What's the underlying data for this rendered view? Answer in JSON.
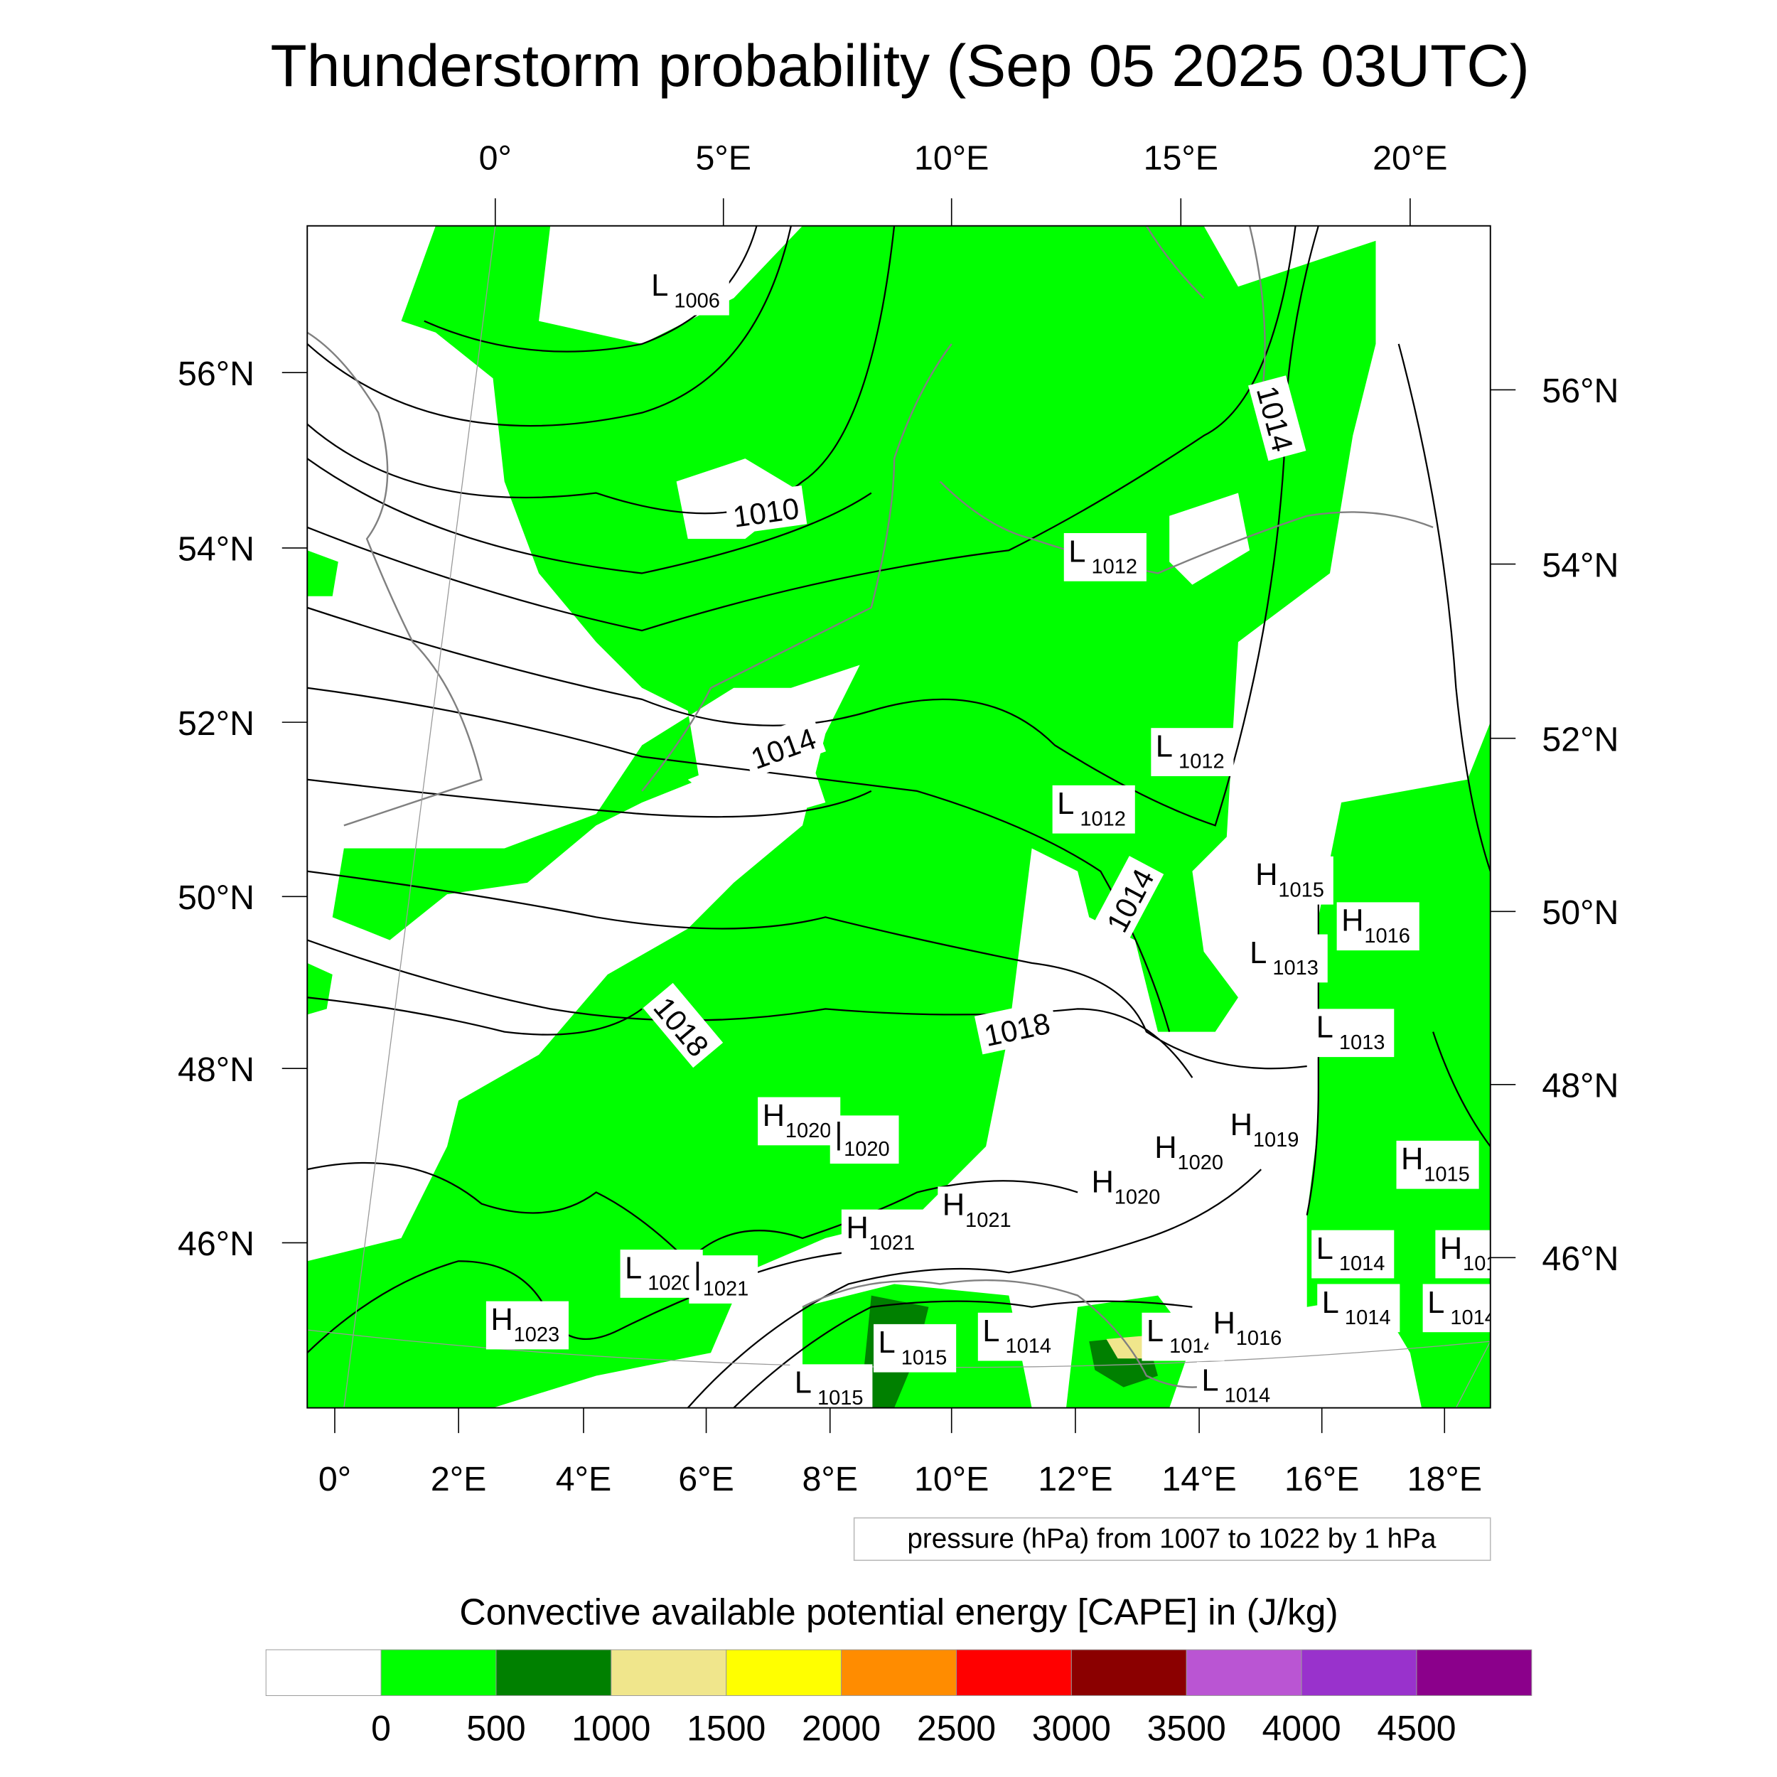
{
  "title": "Thunderstorm probability (Sep 05 2025 03UTC)",
  "top_lon_labels": [
    "0°",
    "5°E",
    "10°E",
    "15°E",
    "20°E"
  ],
  "bottom_lon_labels": [
    "0°",
    "2°E",
    "4°E",
    "6°E",
    "8°E",
    "10°E",
    "12°E",
    "14°E",
    "16°E",
    "18°E"
  ],
  "left_lat_labels": [
    "56°N",
    "54°N",
    "52°N",
    "50°N",
    "48°N",
    "46°N"
  ],
  "right_lat_labels": [
    "56°N",
    "54°N",
    "52°N",
    "50°N",
    "48°N",
    "46°N"
  ],
  "contour_labels": [
    "1006",
    "1010",
    "1014",
    "1014",
    "1014",
    "1018",
    "1018"
  ],
  "pressure_centers": [
    {
      "type": "L",
      "value": "1006"
    },
    {
      "type": "L",
      "value": "1012"
    },
    {
      "type": "L",
      "value": "1012"
    },
    {
      "type": "L",
      "value": "1012"
    },
    {
      "type": "H",
      "value": "1015"
    },
    {
      "type": "H",
      "value": "1016"
    },
    {
      "type": "L",
      "value": "1013"
    },
    {
      "type": "L",
      "value": "1013"
    },
    {
      "type": "H",
      "value": "1020"
    },
    {
      "type": "I",
      "value": "1020"
    },
    {
      "type": "H",
      "value": "1019"
    },
    {
      "type": "H",
      "value": "1020"
    },
    {
      "type": "H",
      "value": "1020"
    },
    {
      "type": "H",
      "value": "1015"
    },
    {
      "type": "H",
      "value": "1021"
    },
    {
      "type": "H",
      "value": "1021"
    },
    {
      "type": "L",
      "value": "1014"
    },
    {
      "type": "H",
      "value": "101"
    },
    {
      "type": "L",
      "value": "1020"
    },
    {
      "type": "I",
      "value": "1021"
    },
    {
      "type": "L",
      "value": "1014"
    },
    {
      "type": "L",
      "value": "1014"
    },
    {
      "type": "H",
      "value": "1023"
    },
    {
      "type": "L",
      "value": "1015"
    },
    {
      "type": "L",
      "value": "1014"
    },
    {
      "type": "L",
      "value": "1014"
    },
    {
      "type": "H",
      "value": "1016"
    },
    {
      "type": "L",
      "value": "1015"
    },
    {
      "type": "L",
      "value": "1014"
    }
  ],
  "info_box": "pressure (hPa) from 1007 to 1022 by 1 hPa",
  "legend": {
    "title": "Convective available potential energy [CAPE] in (J/kg)",
    "colors": [
      "#ffffff",
      "#00ff00",
      "#008000",
      "#f0e68c",
      "#ffff00",
      "#ff8c00",
      "#ff0000",
      "#8b0000",
      "#ba55d3",
      "#9932cc",
      "#8b008b"
    ],
    "ticks": [
      "0",
      "500",
      "1000",
      "1500",
      "2000",
      "2500",
      "3000",
      "3500",
      "4000",
      "4500"
    ]
  }
}
